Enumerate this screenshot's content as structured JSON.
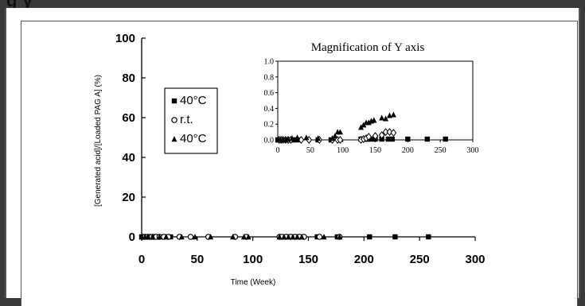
{
  "header": {
    "fragment": "g     y"
  },
  "chart_data": [
    {
      "type": "scatter",
      "xlabel": "Time (Week)",
      "ylabel": "[Generated acid]/[Loaded PAG A] (%)",
      "xlim": [
        0,
        300
      ],
      "ylim": [
        0,
        100
      ],
      "xticks": [
        "0",
        "50",
        "100",
        "150",
        "200",
        "250",
        "300"
      ],
      "yticks": [
        "0",
        "20",
        "40",
        "60",
        "80",
        "100"
      ],
      "legend_position": "upper-left",
      "series": [
        {
          "name": "40°C",
          "marker": "square",
          "x": [
            0,
            2,
            4,
            6,
            8,
            14,
            18,
            22,
            26,
            128,
            132,
            136,
            140,
            158,
            176,
            205,
            228,
            258
          ],
          "y": [
            0,
            0,
            0,
            0,
            0,
            0,
            0,
            0,
            0,
            0,
            0,
            0,
            0,
            0,
            0,
            0,
            0,
            0
          ]
        },
        {
          "name": "r.t.",
          "marker": "circle-open",
          "x": [
            1,
            3,
            5,
            7,
            9,
            11,
            13,
            16,
            20,
            24,
            34,
            44,
            60,
            84,
            94,
            124,
            126,
            130,
            134,
            138,
            142,
            146,
            160,
            178
          ],
          "y": [
            0,
            0,
            0,
            0,
            0,
            0,
            0,
            0,
            0,
            0,
            0,
            0,
            0,
            0,
            0,
            0,
            0,
            0,
            0,
            0,
            0,
            0,
            0,
            0
          ]
        },
        {
          "name": "40°C",
          "marker": "triangle",
          "x": [
            0,
            3,
            6,
            10,
            16,
            22,
            36,
            48,
            62,
            82,
            92,
            96,
            124,
            128,
            132,
            136,
            140,
            144,
            164,
            178
          ],
          "y": [
            0,
            0,
            0,
            0,
            0,
            0,
            0,
            0,
            0,
            0,
            0,
            0,
            0,
            0,
            0,
            0,
            0,
            0,
            0,
            0
          ]
        }
      ]
    },
    {
      "type": "scatter",
      "title": "Magnification of Y axis",
      "xlim": [
        0,
        300
      ],
      "ylim": [
        0,
        1.0
      ],
      "xticks": [
        "0",
        "50",
        "100",
        "150",
        "200",
        "250",
        "300"
      ],
      "yticks": [
        "0.0",
        "0.2",
        "0.4",
        "0.6",
        "0.8",
        "1.0"
      ],
      "series": [
        {
          "marker": "square",
          "x": [
            0,
            3,
            6,
            10,
            14,
            18,
            22,
            26,
            30,
            62,
            82,
            94,
            128,
            132,
            136,
            140,
            144,
            150,
            160,
            170,
            176,
            200,
            230,
            258
          ],
          "y": [
            0,
            0,
            0,
            0,
            0,
            0,
            0,
            0,
            0,
            0,
            0,
            0,
            0.01,
            0.01,
            0.01,
            0.01,
            0.01,
            0.01,
            0.01,
            0.01,
            0.01,
            0.01,
            0.01,
            0.01
          ]
        },
        {
          "marker": "diamond-open",
          "x": [
            2,
            5,
            8,
            12,
            16,
            20,
            36,
            48,
            64,
            84,
            92,
            96,
            128,
            132,
            136,
            140,
            150,
            160,
            166,
            172,
            178
          ],
          "y": [
            0,
            0,
            0,
            0,
            0,
            0,
            0,
            0,
            0,
            0,
            0,
            0,
            0,
            0.01,
            0.02,
            0.04,
            0.05,
            0.06,
            0.1,
            0.1,
            0.09
          ]
        },
        {
          "marker": "triangle",
          "x": [
            1,
            4,
            8,
            12,
            16,
            22,
            30,
            44,
            62,
            84,
            88,
            92,
            96,
            128,
            132,
            136,
            140,
            144,
            148,
            160,
            166,
            172,
            178
          ],
          "y": [
            0,
            0,
            0,
            0,
            0.01,
            0.02,
            0.03,
            0.03,
            0.02,
            0.02,
            0.05,
            0.1,
            0.1,
            0.16,
            0.19,
            0.22,
            0.22,
            0.24,
            0.25,
            0.28,
            0.27,
            0.31,
            0.32
          ]
        }
      ]
    }
  ]
}
